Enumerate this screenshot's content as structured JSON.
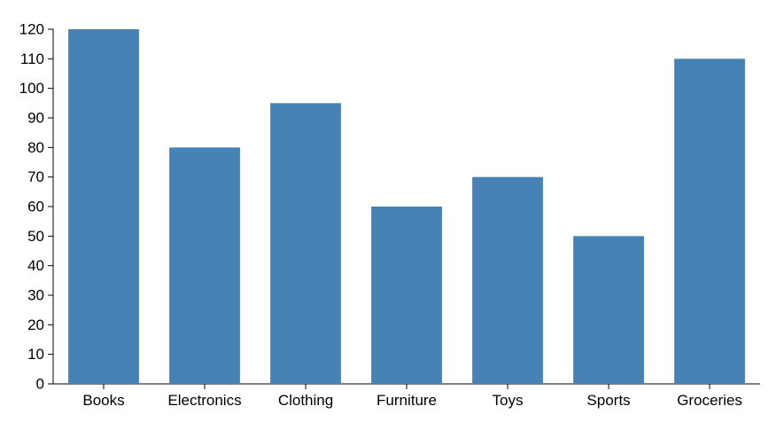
{
  "chart_data": {
    "type": "bar",
    "categories": [
      "Books",
      "Electronics",
      "Clothing",
      "Furniture",
      "Toys",
      "Sports",
      "Groceries"
    ],
    "values": [
      120,
      80,
      95,
      60,
      70,
      50,
      110
    ],
    "ylim": [
      0,
      120
    ],
    "yticks": [
      0,
      10,
      20,
      30,
      40,
      50,
      60,
      70,
      80,
      90,
      100,
      110,
      120
    ],
    "grid": false,
    "bar_color": "#4682b4",
    "axis_color": "#000000"
  }
}
